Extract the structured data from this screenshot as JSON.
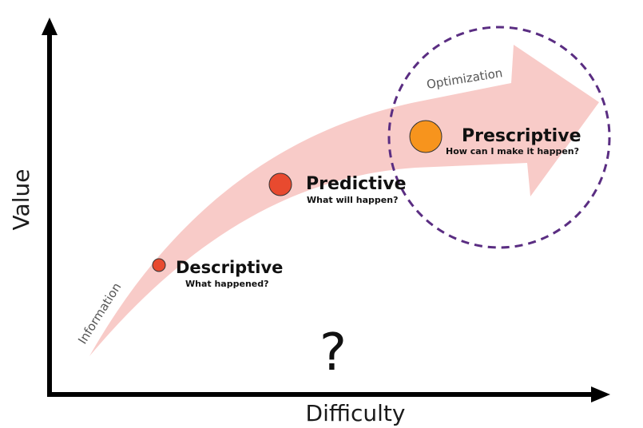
{
  "axes": {
    "x_label": "Difficulty",
    "y_label": "Value"
  },
  "arrow": {
    "start_label": "Information",
    "end_label": "Optimization",
    "fill_color": "#f8cbc8"
  },
  "highlight_circle_color": "#5a2d82",
  "stages": [
    {
      "title": "Descriptive",
      "question": "What happened?",
      "color": "#e84a2f"
    },
    {
      "title": "Predictive",
      "question": "What will happen?",
      "color": "#e84a2f"
    },
    {
      "title": "Prescriptive",
      "question": "How can I make it happen?",
      "color": "#f7941d"
    }
  ],
  "center_mark": "?"
}
